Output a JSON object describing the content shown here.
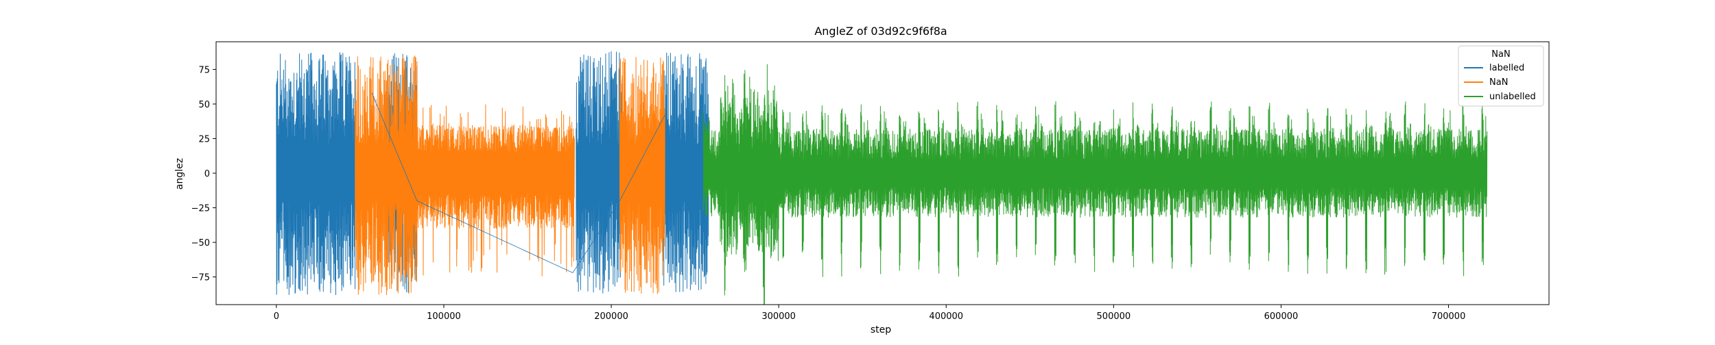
{
  "chart_data": {
    "type": "line",
    "title": "AngleZ of 03d92c9f6f8a",
    "xlabel": "step",
    "ylabel": "anglez",
    "xlim": [
      -36000,
      760000
    ],
    "ylim": [
      -95,
      95
    ],
    "xticks": [
      0,
      100000,
      200000,
      300000,
      400000,
      500000,
      600000,
      700000
    ],
    "xtick_labels": [
      "0",
      "100000",
      "200000",
      "300000",
      "400000",
      "500000",
      "600000",
      "700000"
    ],
    "yticks": [
      -75,
      -50,
      -25,
      0,
      25,
      50,
      75
    ],
    "ytick_labels": [
      "−75",
      "−50",
      "−25",
      "0",
      "25",
      "50",
      "75"
    ],
    "grid": false,
    "legend": {
      "title": "NaN",
      "placement": "top-right",
      "entries": [
        "labelled",
        "NaN",
        "unlabelled"
      ]
    },
    "series": [
      {
        "name": "labelled",
        "color": "#1f77b4",
        "segments": [
          [
            0,
            47000
          ],
          [
            65000,
            84000
          ],
          [
            179000,
            206000
          ],
          [
            231000,
            258000
          ]
        ],
        "amplitude": [
          -88,
          88
        ]
      },
      {
        "name": "NaN",
        "color": "#ff7f0e",
        "segments": [
          [
            47000,
            84000
          ],
          [
            84000,
            178000
          ],
          [
            205000,
            219000
          ],
          [
            219000,
            232000
          ]
        ],
        "amplitude": [
          -88,
          85
        ]
      },
      {
        "name": "unlabelled",
        "color": "#2ca02c",
        "segments": [
          [
            255000,
            723000
          ]
        ],
        "amplitude": [
          -82,
          80
        ]
      }
    ],
    "connector_lines": {
      "color": "#1f77b4",
      "points": [
        [
          57000,
          58
        ],
        [
          84000,
          -20
        ],
        [
          177000,
          -72
        ],
        [
          205000,
          -20
        ],
        [
          232000,
          42
        ]
      ]
    }
  }
}
